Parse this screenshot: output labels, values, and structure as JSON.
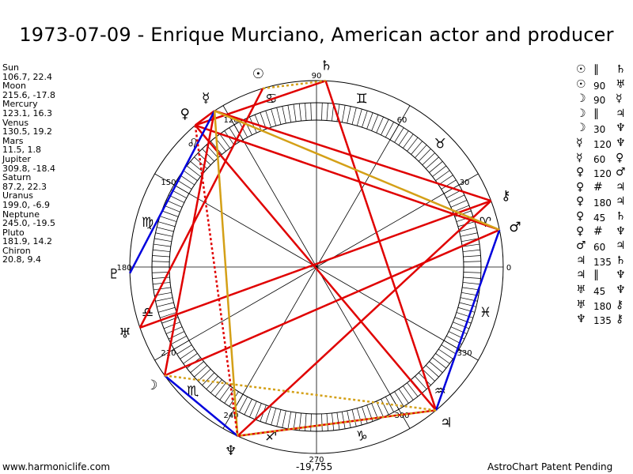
{
  "title": "1973-07-09 - Enrique Murciano, American actor and producer",
  "positions": [
    {
      "name": "Sun",
      "coords": "106.7, 22.4"
    },
    {
      "name": "Moon",
      "coords": "215.6, -17.8"
    },
    {
      "name": "Mercury",
      "coords": "123.1, 16.3"
    },
    {
      "name": "Venus",
      "coords": "130.5, 19.2"
    },
    {
      "name": "Mars",
      "coords": "11.5, 1.8"
    },
    {
      "name": "Jupiter",
      "coords": "309.8, -18.4"
    },
    {
      "name": "Saturn",
      "coords": "87.2, 22.3"
    },
    {
      "name": "Uranus",
      "coords": "199.0, -6.9"
    },
    {
      "name": "Neptune",
      "coords": "245.0, -19.5"
    },
    {
      "name": "Pluto",
      "coords": "181.9, 14.2"
    },
    {
      "name": "Chiron",
      "coords": "20.8, 9.4"
    }
  ],
  "aspects": [
    {
      "p1": "☉",
      "sym": "∥",
      "p2": "♄"
    },
    {
      "p1": "☉",
      "sym": "90",
      "p2": "♅"
    },
    {
      "p1": "☽",
      "sym": "90",
      "p2": "☿"
    },
    {
      "p1": "☽",
      "sym": "∥",
      "p2": "♃"
    },
    {
      "p1": "☽",
      "sym": "30",
      "p2": "♆"
    },
    {
      "p1": "☿",
      "sym": "120",
      "p2": "♆"
    },
    {
      "p1": "☿",
      "sym": "60",
      "p2": "♀"
    },
    {
      "p1": "♀",
      "sym": "120",
      "p2": "♂"
    },
    {
      "p1": "♀",
      "sym": "#",
      "p2": "♃"
    },
    {
      "p1": "♀",
      "sym": "180",
      "p2": "♃"
    },
    {
      "p1": "♀",
      "sym": "45",
      "p2": "♄"
    },
    {
      "p1": "♀",
      "sym": "#",
      "p2": "♆"
    },
    {
      "p1": "♂",
      "sym": "60",
      "p2": "♃"
    },
    {
      "p1": "♃",
      "sym": "135",
      "p2": "♄"
    },
    {
      "p1": "♃",
      "sym": "∥",
      "p2": "♆"
    },
    {
      "p1": "♅",
      "sym": "45",
      "p2": "♆"
    },
    {
      "p1": "♅",
      "sym": "180",
      "p2": "⚷"
    },
    {
      "p1": "♆",
      "sym": "135",
      "p2": "⚷"
    }
  ],
  "wheel": {
    "degree_labels": [
      "0",
      "30",
      "60",
      "90",
      "120",
      "150",
      "180",
      "210",
      "240",
      "270",
      "300",
      "330"
    ],
    "zodiac": [
      {
        "name": "aries",
        "glyph": "♈︎",
        "deg": 15
      },
      {
        "name": "taurus",
        "glyph": "♉︎",
        "deg": 45
      },
      {
        "name": "gemini",
        "glyph": "♊︎",
        "deg": 75
      },
      {
        "name": "cancer",
        "glyph": "♋︎",
        "deg": 105
      },
      {
        "name": "leo",
        "glyph": "♌︎",
        "deg": 135
      },
      {
        "name": "virgo",
        "glyph": "♍︎",
        "deg": 165
      },
      {
        "name": "libra",
        "glyph": "♎︎",
        "deg": 195
      },
      {
        "name": "scorpio",
        "glyph": "♏︎",
        "deg": 225
      },
      {
        "name": "sagittarius",
        "glyph": "♐︎",
        "deg": 255
      },
      {
        "name": "capricorn",
        "glyph": "♑︎",
        "deg": 285
      },
      {
        "name": "aquarius",
        "glyph": "♒︎",
        "deg": 315
      },
      {
        "name": "pisces",
        "glyph": "♓︎",
        "deg": 345
      }
    ],
    "planets": [
      {
        "name": "sun",
        "glyph": "☉",
        "deg": 106.7
      },
      {
        "name": "moon",
        "glyph": "☽",
        "deg": 215.6
      },
      {
        "name": "mercury",
        "glyph": "☿",
        "deg": 123.1
      },
      {
        "name": "venus",
        "glyph": "♀",
        "deg": 130.5
      },
      {
        "name": "mars",
        "glyph": "♂",
        "deg": 11.5
      },
      {
        "name": "jupiter",
        "glyph": "♃",
        "deg": 309.8
      },
      {
        "name": "saturn",
        "glyph": "♄",
        "deg": 87.2
      },
      {
        "name": "uranus",
        "glyph": "♅",
        "deg": 199.0
      },
      {
        "name": "neptune",
        "glyph": "♆",
        "deg": 245.0
      },
      {
        "name": "pluto",
        "glyph": "♇",
        "deg": 181.9
      },
      {
        "name": "chiron",
        "glyph": "⚷",
        "deg": 20.8
      }
    ],
    "aspect_lines": [
      {
        "from": "sun",
        "to": "uranus",
        "color": "#e00000",
        "style": "solid"
      },
      {
        "from": "moon",
        "to": "mercury",
        "color": "#e00000",
        "style": "solid"
      },
      {
        "from": "mercury",
        "to": "venus",
        "color": "#e00000",
        "style": "solid"
      },
      {
        "from": "venus",
        "to": "mars",
        "color": "#e00000",
        "style": "solid"
      },
      {
        "from": "venus",
        "to": "jupiter",
        "color": "#e00000",
        "style": "solid"
      },
      {
        "from": "venus",
        "to": "saturn",
        "color": "#e00000",
        "style": "solid"
      },
      {
        "from": "mars",
        "to": "moon",
        "color": "#e00000",
        "style": "solid"
      },
      {
        "from": "jupiter",
        "to": "saturn",
        "color": "#e00000",
        "style": "solid"
      },
      {
        "from": "jupiter",
        "to": "neptune",
        "color": "#e00000",
        "style": "solid"
      },
      {
        "from": "uranus",
        "to": "chiron",
        "color": "#e00000",
        "style": "solid"
      },
      {
        "from": "neptune",
        "to": "chiron",
        "color": "#e00000",
        "style": "solid"
      },
      {
        "from": "mercury",
        "to": "chiron",
        "color": "#e00000",
        "style": "solid"
      },
      {
        "from": "moon",
        "to": "neptune",
        "color": "#0000dd",
        "style": "solid"
      },
      {
        "from": "mercury",
        "to": "pluto",
        "color": "#0000dd",
        "style": "solid"
      },
      {
        "from": "mars",
        "to": "jupiter",
        "color": "#0000dd",
        "style": "solid"
      },
      {
        "from": "mercury",
        "to": "neptune",
        "color": "#d4a017",
        "style": "solid"
      },
      {
        "from": "mars",
        "to": "mercury",
        "color": "#d4a017",
        "style": "solid"
      },
      {
        "from": "venus",
        "to": "neptune",
        "color": "#e00000",
        "style": "dotted"
      },
      {
        "from": "sun",
        "to": "saturn",
        "color": "#d4a017",
        "style": "dotted"
      },
      {
        "from": "moon",
        "to": "jupiter",
        "color": "#d4a017",
        "style": "dotted"
      },
      {
        "from": "jupiter",
        "to": "neptune",
        "color": "#d4a017",
        "style": "dotted"
      }
    ]
  },
  "footer": {
    "site": "www.harmoniclife.com",
    "value": "-19,755",
    "patent": "AstroChart Patent Pending"
  }
}
